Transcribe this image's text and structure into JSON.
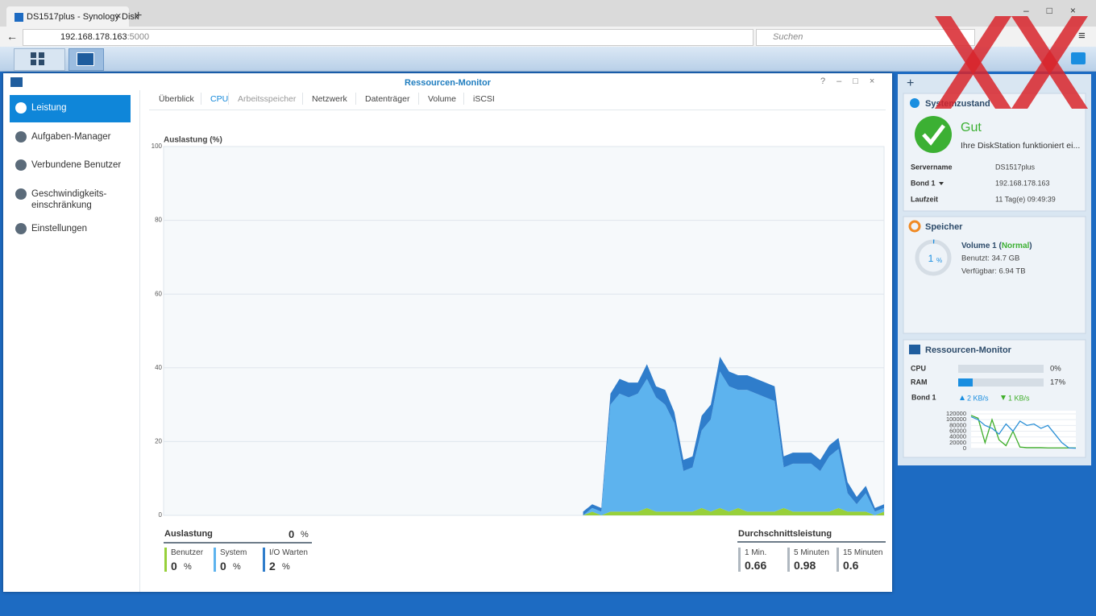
{
  "browser": {
    "tab_title": "DS1517plus - Synology Disk",
    "url": "192.168.178.163",
    "port": ":5000",
    "search": "Suchen"
  },
  "window": {
    "title": "Ressourcen-Monitor"
  },
  "sidebar": [
    [
      "Leistung"
    ],
    [
      "Aufgaben-Manager"
    ],
    [
      "Verbundene Benutzer"
    ],
    [
      "Geschwindigkeits-",
      "einschränkung"
    ],
    [
      "Einstellungen"
    ]
  ],
  "tabs": [
    "Überblick",
    "CPU",
    "Arbeitsspeicher",
    "Netzwerk",
    "Datenträger",
    "Volume",
    "iSCSI"
  ],
  "chart_data": {
    "type": "stacked-area",
    "y_label": "Auslastung (%)",
    "ylim": [
      0,
      100
    ],
    "yticks": [
      0,
      20,
      40,
      60,
      80,
      100
    ],
    "grid": true,
    "series": [
      {
        "name": "Benutzer",
        "color": "#97d03a",
        "values": [
          null,
          null,
          null,
          null,
          null,
          null,
          null,
          null,
          null,
          null,
          null,
          null,
          null,
          null,
          null,
          null,
          null,
          null,
          null,
          null,
          null,
          null,
          null,
          null,
          null,
          null,
          null,
          null,
          null,
          null,
          null,
          null,
          null,
          null,
          null,
          null,
          null,
          null,
          null,
          null,
          null,
          null,
          null,
          null,
          null,
          null,
          0,
          1,
          0,
          1,
          1,
          1,
          1,
          2,
          1,
          1,
          1,
          1,
          1,
          2,
          1,
          2,
          1,
          2,
          1,
          1,
          1,
          1,
          2,
          1,
          1,
          1,
          1,
          1,
          2,
          1,
          1,
          1,
          0,
          1
        ]
      },
      {
        "name": "System",
        "color": "#5db3ee",
        "values": [
          null,
          null,
          null,
          null,
          null,
          null,
          null,
          null,
          null,
          null,
          null,
          null,
          null,
          null,
          null,
          null,
          null,
          null,
          null,
          null,
          null,
          null,
          null,
          null,
          null,
          null,
          null,
          null,
          null,
          null,
          null,
          null,
          null,
          null,
          null,
          null,
          null,
          null,
          null,
          null,
          null,
          null,
          null,
          null,
          null,
          null,
          0,
          1,
          1,
          29,
          32,
          31,
          32,
          35,
          31,
          29,
          24,
          11,
          12,
          21,
          25,
          37,
          34,
          32,
          33,
          32,
          31,
          30,
          11,
          13,
          13,
          13,
          11,
          15,
          16,
          5,
          2,
          5,
          1,
          1
        ]
      },
      {
        "name": "I/O Warten",
        "color": "#2f7dcb",
        "values": [
          null,
          null,
          null,
          null,
          null,
          null,
          null,
          null,
          null,
          null,
          null,
          null,
          null,
          null,
          null,
          null,
          null,
          null,
          null,
          null,
          null,
          null,
          null,
          null,
          null,
          null,
          null,
          null,
          null,
          null,
          null,
          null,
          null,
          null,
          null,
          null,
          null,
          null,
          null,
          null,
          null,
          null,
          null,
          null,
          null,
          null,
          1,
          1,
          1,
          3,
          4,
          4,
          3,
          4,
          3,
          4,
          3,
          3,
          3,
          4,
          4,
          4,
          4,
          4,
          4,
          4,
          4,
          4,
          3,
          3,
          3,
          3,
          3,
          3,
          3,
          3,
          2,
          2,
          1,
          1
        ]
      }
    ]
  },
  "summary": {
    "title": "Auslastung",
    "total": "0",
    "unit": "%",
    "items": [
      {
        "value": "0",
        "unit": "%"
      },
      {
        "value": "0",
        "unit": "%"
      },
      {
        "value": "2",
        "unit": "%"
      }
    ]
  },
  "average": {
    "title": "Durchschnittsleistung",
    "items": [
      {
        "label": "1 Min.",
        "value": "0.66"
      },
      {
        "label": "5 Minuten",
        "value": "0.98"
      },
      {
        "label": "15 Minuten",
        "value": "0.6"
      }
    ]
  },
  "widgets": {
    "system": {
      "title": "Systemzustand",
      "status": "Gut",
      "message": "Ihre DiskStation funktioniert ei...",
      "rows": [
        [
          "Servername",
          "DS1517plus"
        ],
        [
          "Bond 1",
          "192.168.178.163"
        ],
        [
          "Laufzeit",
          "11 Tag(e) 09:49:39"
        ]
      ]
    },
    "storage": {
      "title": "Speicher",
      "percent": 1,
      "unit": "%",
      "volume": "Volume 1 (",
      "status": "Normal",
      "close": ")",
      "used": "Benutzt: 34.7 GB",
      "free": "Verfügbar: 6.94 TB"
    },
    "monitor": {
      "title": "Ressourcen-Monitor",
      "rows": [
        {
          "label": "CPU",
          "value": 0,
          "value_label": "0%"
        },
        {
          "label": "RAM",
          "value": 17,
          "value_label": "17%"
        }
      ],
      "net_label": "Bond 1",
      "up": "2 KB/s",
      "down": "1 KB/s",
      "chart": {
        "type": "line",
        "ylim": [
          0,
          120000
        ],
        "yticks": [
          0,
          20000,
          40000,
          60000,
          80000,
          100000,
          120000
        ],
        "series": [
          {
            "color": "#3fae2a",
            "values": [
              115000,
              105000,
              20000,
              100000,
              30000,
              10000,
              60000,
              5000,
              3000,
              3000,
              3000,
              2000,
              2000,
              2000,
              2000,
              2000
            ]
          },
          {
            "color": "#2a8fd6",
            "values": [
              110000,
              100000,
              80000,
              70000,
              50000,
              85000,
              60000,
              95000,
              80000,
              85000,
              70000,
              80000,
              50000,
              20000,
              2000,
              1000
            ]
          }
        ]
      }
    }
  }
}
